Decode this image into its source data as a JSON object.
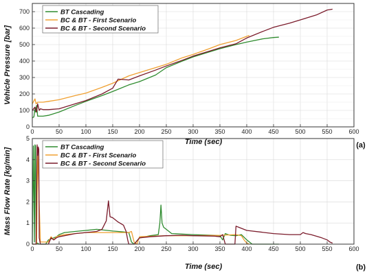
{
  "chart_data": [
    {
      "type": "line",
      "panel_label": "(a)",
      "xlabel": "Time (sec)",
      "ylabel": "Vehicle Pressure [bar]",
      "xlim": [
        0,
        600
      ],
      "ylim": [
        0,
        750
      ],
      "xticks": [
        "0",
        "50",
        "100",
        "150",
        "200",
        "250",
        "300",
        "350",
        "400",
        "450",
        "500",
        "550",
        "600"
      ],
      "yticks": [
        "0",
        "100",
        "200",
        "300",
        "400",
        "500",
        "600",
        "700"
      ],
      "grid": true,
      "legend_position": "top-left",
      "series": [
        {
          "name": "BT Cascading",
          "color": "#2e8b2e",
          "x": [
            0,
            3,
            5,
            6,
            8,
            10,
            15,
            20,
            30,
            50,
            80,
            100,
            130,
            150,
            180,
            200,
            230,
            250,
            280,
            300,
            330,
            350,
            380,
            400,
            430,
            450,
            460
          ],
          "y": [
            55,
            60,
            110,
            90,
            130,
            65,
            65,
            65,
            70,
            90,
            130,
            155,
            190,
            215,
            255,
            275,
            315,
            360,
            400,
            425,
            455,
            475,
            500,
            515,
            535,
            543,
            545
          ]
        },
        {
          "name": "BC & BT - First Scenario",
          "color": "#f0a030",
          "x": [
            0,
            5,
            7,
            10,
            15,
            20,
            30,
            50,
            80,
            100,
            130,
            150,
            180,
            200,
            230,
            250,
            280,
            300,
            330,
            350,
            380,
            400,
            405
          ],
          "y": [
            140,
            170,
            140,
            150,
            150,
            150,
            155,
            165,
            190,
            205,
            240,
            265,
            310,
            330,
            360,
            380,
            420,
            440,
            475,
            500,
            525,
            550,
            555
          ]
        },
        {
          "name": "BC & BT - Second Scenario",
          "color": "#7a1a2a",
          "x": [
            0,
            5,
            8,
            10,
            13,
            15,
            20,
            30,
            50,
            80,
            100,
            130,
            150,
            160,
            180,
            200,
            230,
            250,
            280,
            300,
            330,
            350,
            380,
            400,
            430,
            450,
            480,
            500,
            530,
            550,
            560
          ],
          "y": [
            100,
            120,
            90,
            140,
            100,
            110,
            105,
            105,
            110,
            140,
            160,
            200,
            235,
            290,
            285,
            310,
            345,
            370,
            405,
            430,
            460,
            480,
            505,
            540,
            580,
            605,
            630,
            650,
            680,
            710,
            715
          ]
        }
      ]
    },
    {
      "type": "line",
      "panel_label": "(b)",
      "xlabel": "Time (sec)",
      "ylabel": "Mass Flow Rate [kg/min]",
      "xlim": [
        0,
        600
      ],
      "ylim": [
        0,
        5
      ],
      "xticks": [
        "0",
        "50",
        "100",
        "150",
        "200",
        "250",
        "300",
        "350",
        "400",
        "450",
        "500",
        "550",
        "600"
      ],
      "yticks": [
        "0",
        "1",
        "2",
        "3",
        "4",
        "5"
      ],
      "grid": true,
      "legend_position": "top-left",
      "series": [
        {
          "name": "BT Cascading",
          "color": "#2e8b2e",
          "x": [
            0,
            2,
            4,
            5,
            6,
            7,
            8,
            10,
            12,
            25,
            30,
            35,
            40,
            45,
            50,
            60,
            80,
            100,
            120,
            140,
            150,
            160,
            170,
            180,
            185,
            190,
            200,
            220,
            235,
            238,
            240,
            242,
            245,
            255,
            260,
            300,
            340,
            350,
            355,
            360,
            365,
            370,
            380,
            390,
            400,
            410,
            450,
            460
          ],
          "y": [
            0,
            4.65,
            0.1,
            4.7,
            4.65,
            0.1,
            0.05,
            0.05,
            0,
            0,
            0.2,
            0.25,
            0.3,
            0.35,
            0.45,
            0.55,
            0.6,
            0.65,
            0.7,
            0.65,
            0.62,
            0.6,
            0.58,
            0.55,
            0.1,
            0.0,
            0.3,
            0.4,
            0.45,
            1.0,
            1.85,
            1.0,
            0.8,
            0.6,
            0.5,
            0.45,
            0.42,
            0.4,
            0.2,
            0.5,
            0.45,
            0.42,
            0.4,
            0.45,
            0.2,
            0.0,
            0.0,
            0.0
          ]
        },
        {
          "name": "BC & BT - First Scenario",
          "color": "#f0a030",
          "x": [
            0,
            8,
            10,
            15,
            30,
            35,
            40,
            45,
            50,
            60,
            80,
            100,
            130,
            150,
            170,
            180,
            185,
            190,
            195,
            200,
            250,
            300,
            350,
            380,
            390,
            395,
            400,
            405
          ],
          "y": [
            0,
            0,
            4.4,
            0.1,
            0.1,
            0.35,
            0.2,
            0.35,
            0.4,
            0.45,
            0.5,
            0.55,
            0.55,
            0.55,
            0.55,
            0.55,
            0.6,
            0.1,
            0.0,
            0.35,
            0.4,
            0.4,
            0.42,
            0.45,
            0.4,
            0.2,
            0.05,
            0.0
          ]
        },
        {
          "name": "BC & BT - Second Scenario",
          "color": "#7a1a2a",
          "x": [
            0,
            7,
            9,
            10,
            11,
            12,
            13,
            15,
            30,
            35,
            40,
            45,
            50,
            60,
            80,
            100,
            120,
            130,
            138,
            142,
            145,
            150,
            160,
            170,
            175,
            178,
            180,
            185,
            190,
            200,
            220,
            250,
            280,
            300,
            340,
            350,
            355,
            360,
            370,
            378,
            380,
            385,
            400,
            450,
            480,
            500,
            505,
            510,
            520,
            540,
            550,
            555,
            560
          ],
          "y": [
            0,
            0,
            4.7,
            4.2,
            4.6,
            4.5,
            0.3,
            0.0,
            0.0,
            0.3,
            0.2,
            0.3,
            0.35,
            0.4,
            0.5,
            0.55,
            0.6,
            0.7,
            1.1,
            2.05,
            1.3,
            1.25,
            1.05,
            0.9,
            0.6,
            0.2,
            0.0,
            0.0,
            0.0,
            0.3,
            0.35,
            0.4,
            0.42,
            0.4,
            0.38,
            0.35,
            0.45,
            0.0,
            0.0,
            0.0,
            0.85,
            0.8,
            0.65,
            0.5,
            0.45,
            0.45,
            0.55,
            0.5,
            0.45,
            0.3,
            0.2,
            0.1,
            0.05
          ]
        }
      ]
    }
  ]
}
